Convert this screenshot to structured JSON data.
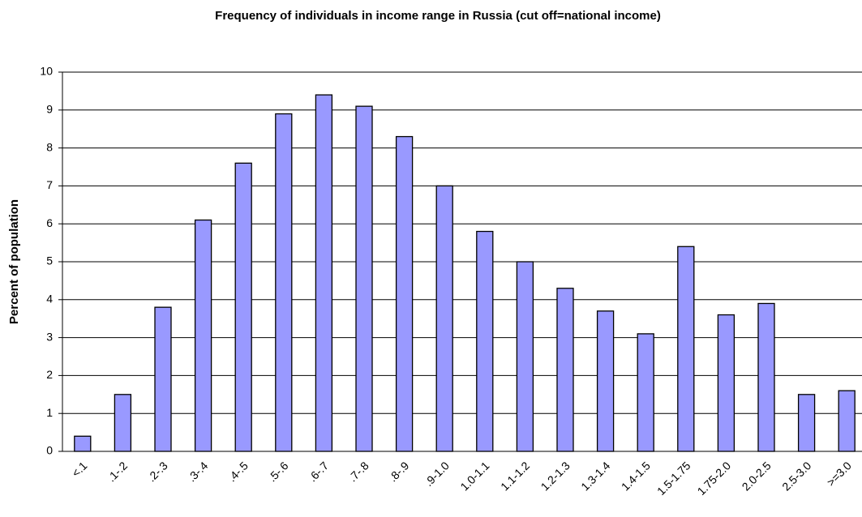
{
  "chart_data": {
    "type": "bar",
    "title": "Frequency of individuals in income range in Russia (cut off=national income)",
    "y_label": "Percent of population",
    "categories": [
      "<.1",
      ".1-.2",
      ".2-.3",
      ".3-.4",
      ".4-.5",
      ".5-.6",
      ".6-.7",
      ".7-.8",
      ".8-.9",
      ".9-1.0",
      "1.0-1.1",
      "1.1-1.2",
      "1.2-1.3",
      "1.3-1.4",
      "1.4-1.5",
      "1.5-1.75",
      "1.75-2.0",
      "2.0-2.5",
      "2.5-3.0",
      ">=3.0"
    ],
    "values": [
      0.4,
      1.5,
      3.8,
      6.1,
      7.6,
      8.9,
      9.4,
      9.1,
      8.3,
      7.0,
      5.8,
      5.0,
      4.3,
      3.7,
      3.1,
      5.4,
      3.6,
      3.9,
      1.5,
      1.6
    ],
    "color": "#9999ff",
    "ylim": [
      0,
      10
    ],
    "yticks": [
      0,
      1,
      2,
      3,
      4,
      5,
      6,
      7,
      8,
      9,
      10
    ],
    "grid": true
  }
}
